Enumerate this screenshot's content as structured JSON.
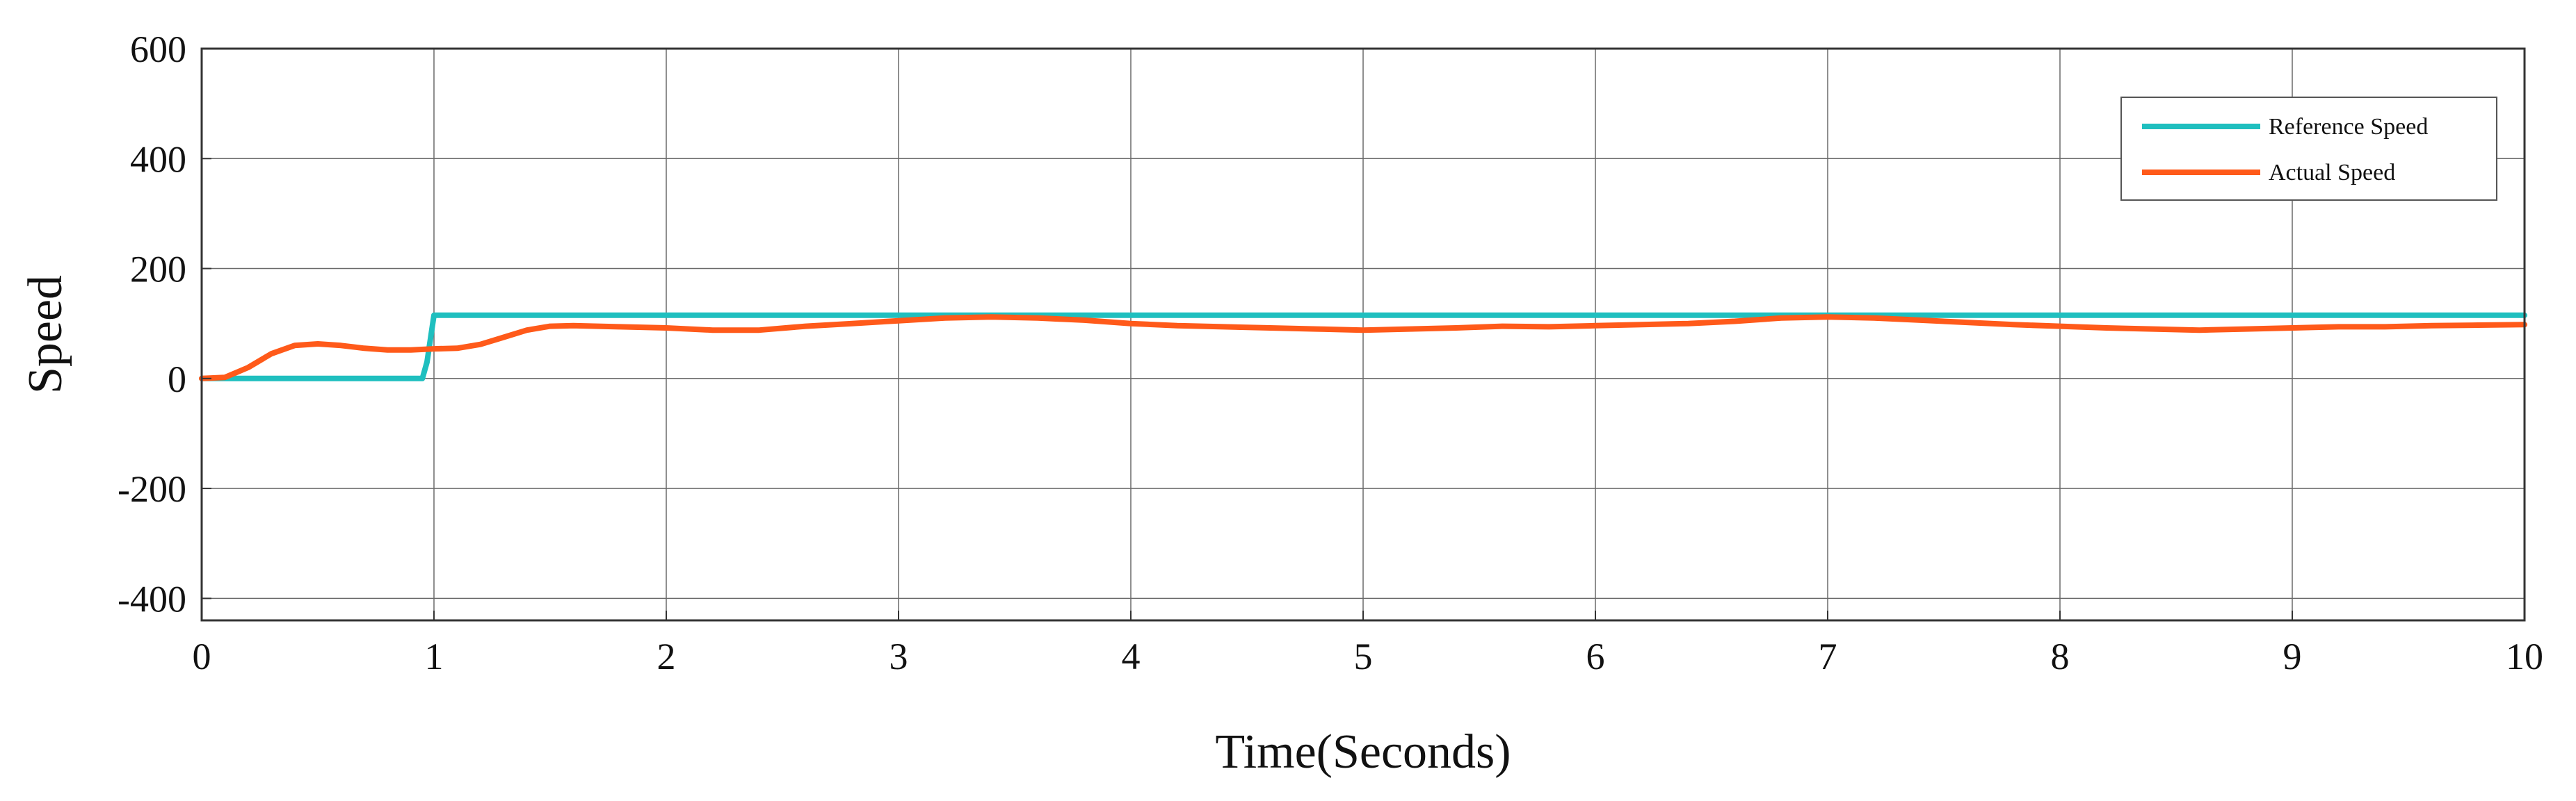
{
  "chart_data": {
    "type": "line",
    "xlabel": "Time(Seconds)",
    "ylabel": "Speed",
    "xlim": [
      0,
      10
    ],
    "ylim": [
      -440,
      600
    ],
    "xticks": [
      "0",
      "1",
      "2",
      "3",
      "4",
      "5",
      "6",
      "7",
      "8",
      "9",
      "10"
    ],
    "yticks": [
      "600",
      "400",
      "200",
      "0",
      "-200",
      "-400"
    ],
    "grid": true,
    "legend_position": "top-right",
    "series": [
      {
        "name": "Reference Speed",
        "color": "#1fbfbf",
        "x": [
          0,
          0.95,
          0.97,
          1.0,
          10
        ],
        "y": [
          0,
          0,
          30,
          115,
          115
        ]
      },
      {
        "name": "Actual Speed",
        "color": "#ff5a1a",
        "x": [
          0,
          0.1,
          0.2,
          0.3,
          0.4,
          0.5,
          0.6,
          0.7,
          0.8,
          0.9,
          1.0,
          1.1,
          1.2,
          1.3,
          1.4,
          1.5,
          1.6,
          1.8,
          2.0,
          2.2,
          2.4,
          2.6,
          2.8,
          3.0,
          3.2,
          3.4,
          3.6,
          3.8,
          4.0,
          4.2,
          4.4,
          4.6,
          4.8,
          5.0,
          5.2,
          5.4,
          5.6,
          5.8,
          6.0,
          6.2,
          6.4,
          6.6,
          6.8,
          7.0,
          7.2,
          7.4,
          7.6,
          7.8,
          8.0,
          8.2,
          8.4,
          8.6,
          8.8,
          9.0,
          9.2,
          9.4,
          9.6,
          9.8,
          10.0
        ],
        "y": [
          0,
          2,
          20,
          45,
          60,
          63,
          60,
          55,
          52,
          52,
          54,
          55,
          62,
          75,
          88,
          95,
          96,
          94,
          92,
          88,
          88,
          95,
          100,
          105,
          110,
          112,
          110,
          106,
          100,
          96,
          94,
          92,
          90,
          88,
          90,
          92,
          95,
          94,
          96,
          98,
          100,
          104,
          110,
          112,
          110,
          106,
          102,
          98,
          95,
          92,
          90,
          88,
          90,
          92,
          94,
          94,
          96,
          97,
          98
        ]
      }
    ]
  }
}
